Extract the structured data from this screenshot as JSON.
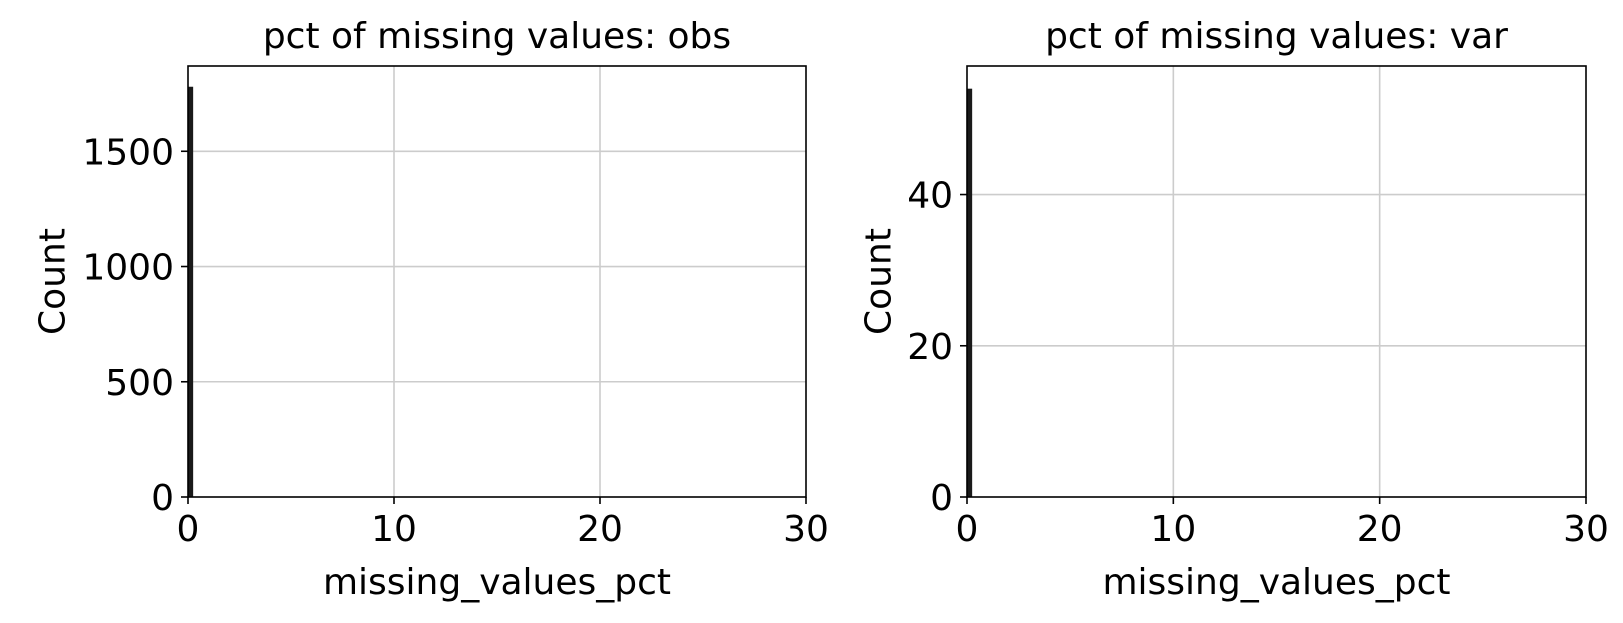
{
  "chart_data": [
    {
      "type": "bar",
      "title": "pct of missing values: obs",
      "xlabel": "missing_values_pct",
      "ylabel": "Count",
      "xlim": [
        0,
        30
      ],
      "ylim": [
        0,
        1870
      ],
      "xticks": [
        0,
        10,
        20,
        30
      ],
      "yticks": [
        0,
        500,
        1000,
        1500
      ],
      "xtick_labels": [
        "0",
        "10",
        "20",
        "30"
      ],
      "ytick_labels": [
        "0",
        "500",
        "1000",
        "1500"
      ],
      "grid": true,
      "bins": [
        {
          "x0": 0,
          "x1": 0.25,
          "count": 1780
        }
      ]
    },
    {
      "type": "bar",
      "title": "pct of missing values: var",
      "xlabel": "missing_values_pct",
      "ylabel": "Count",
      "xlim": [
        0,
        30
      ],
      "ylim": [
        0,
        57
      ],
      "xticks": [
        0,
        10,
        20,
        30
      ],
      "yticks": [
        0,
        20,
        40
      ],
      "xtick_labels": [
        "0",
        "10",
        "20",
        "30"
      ],
      "ytick_labels": [
        "0",
        "20",
        "40"
      ],
      "grid": true,
      "bins": [
        {
          "x0": 0,
          "x1": 0.25,
          "count": 54
        }
      ]
    }
  ]
}
